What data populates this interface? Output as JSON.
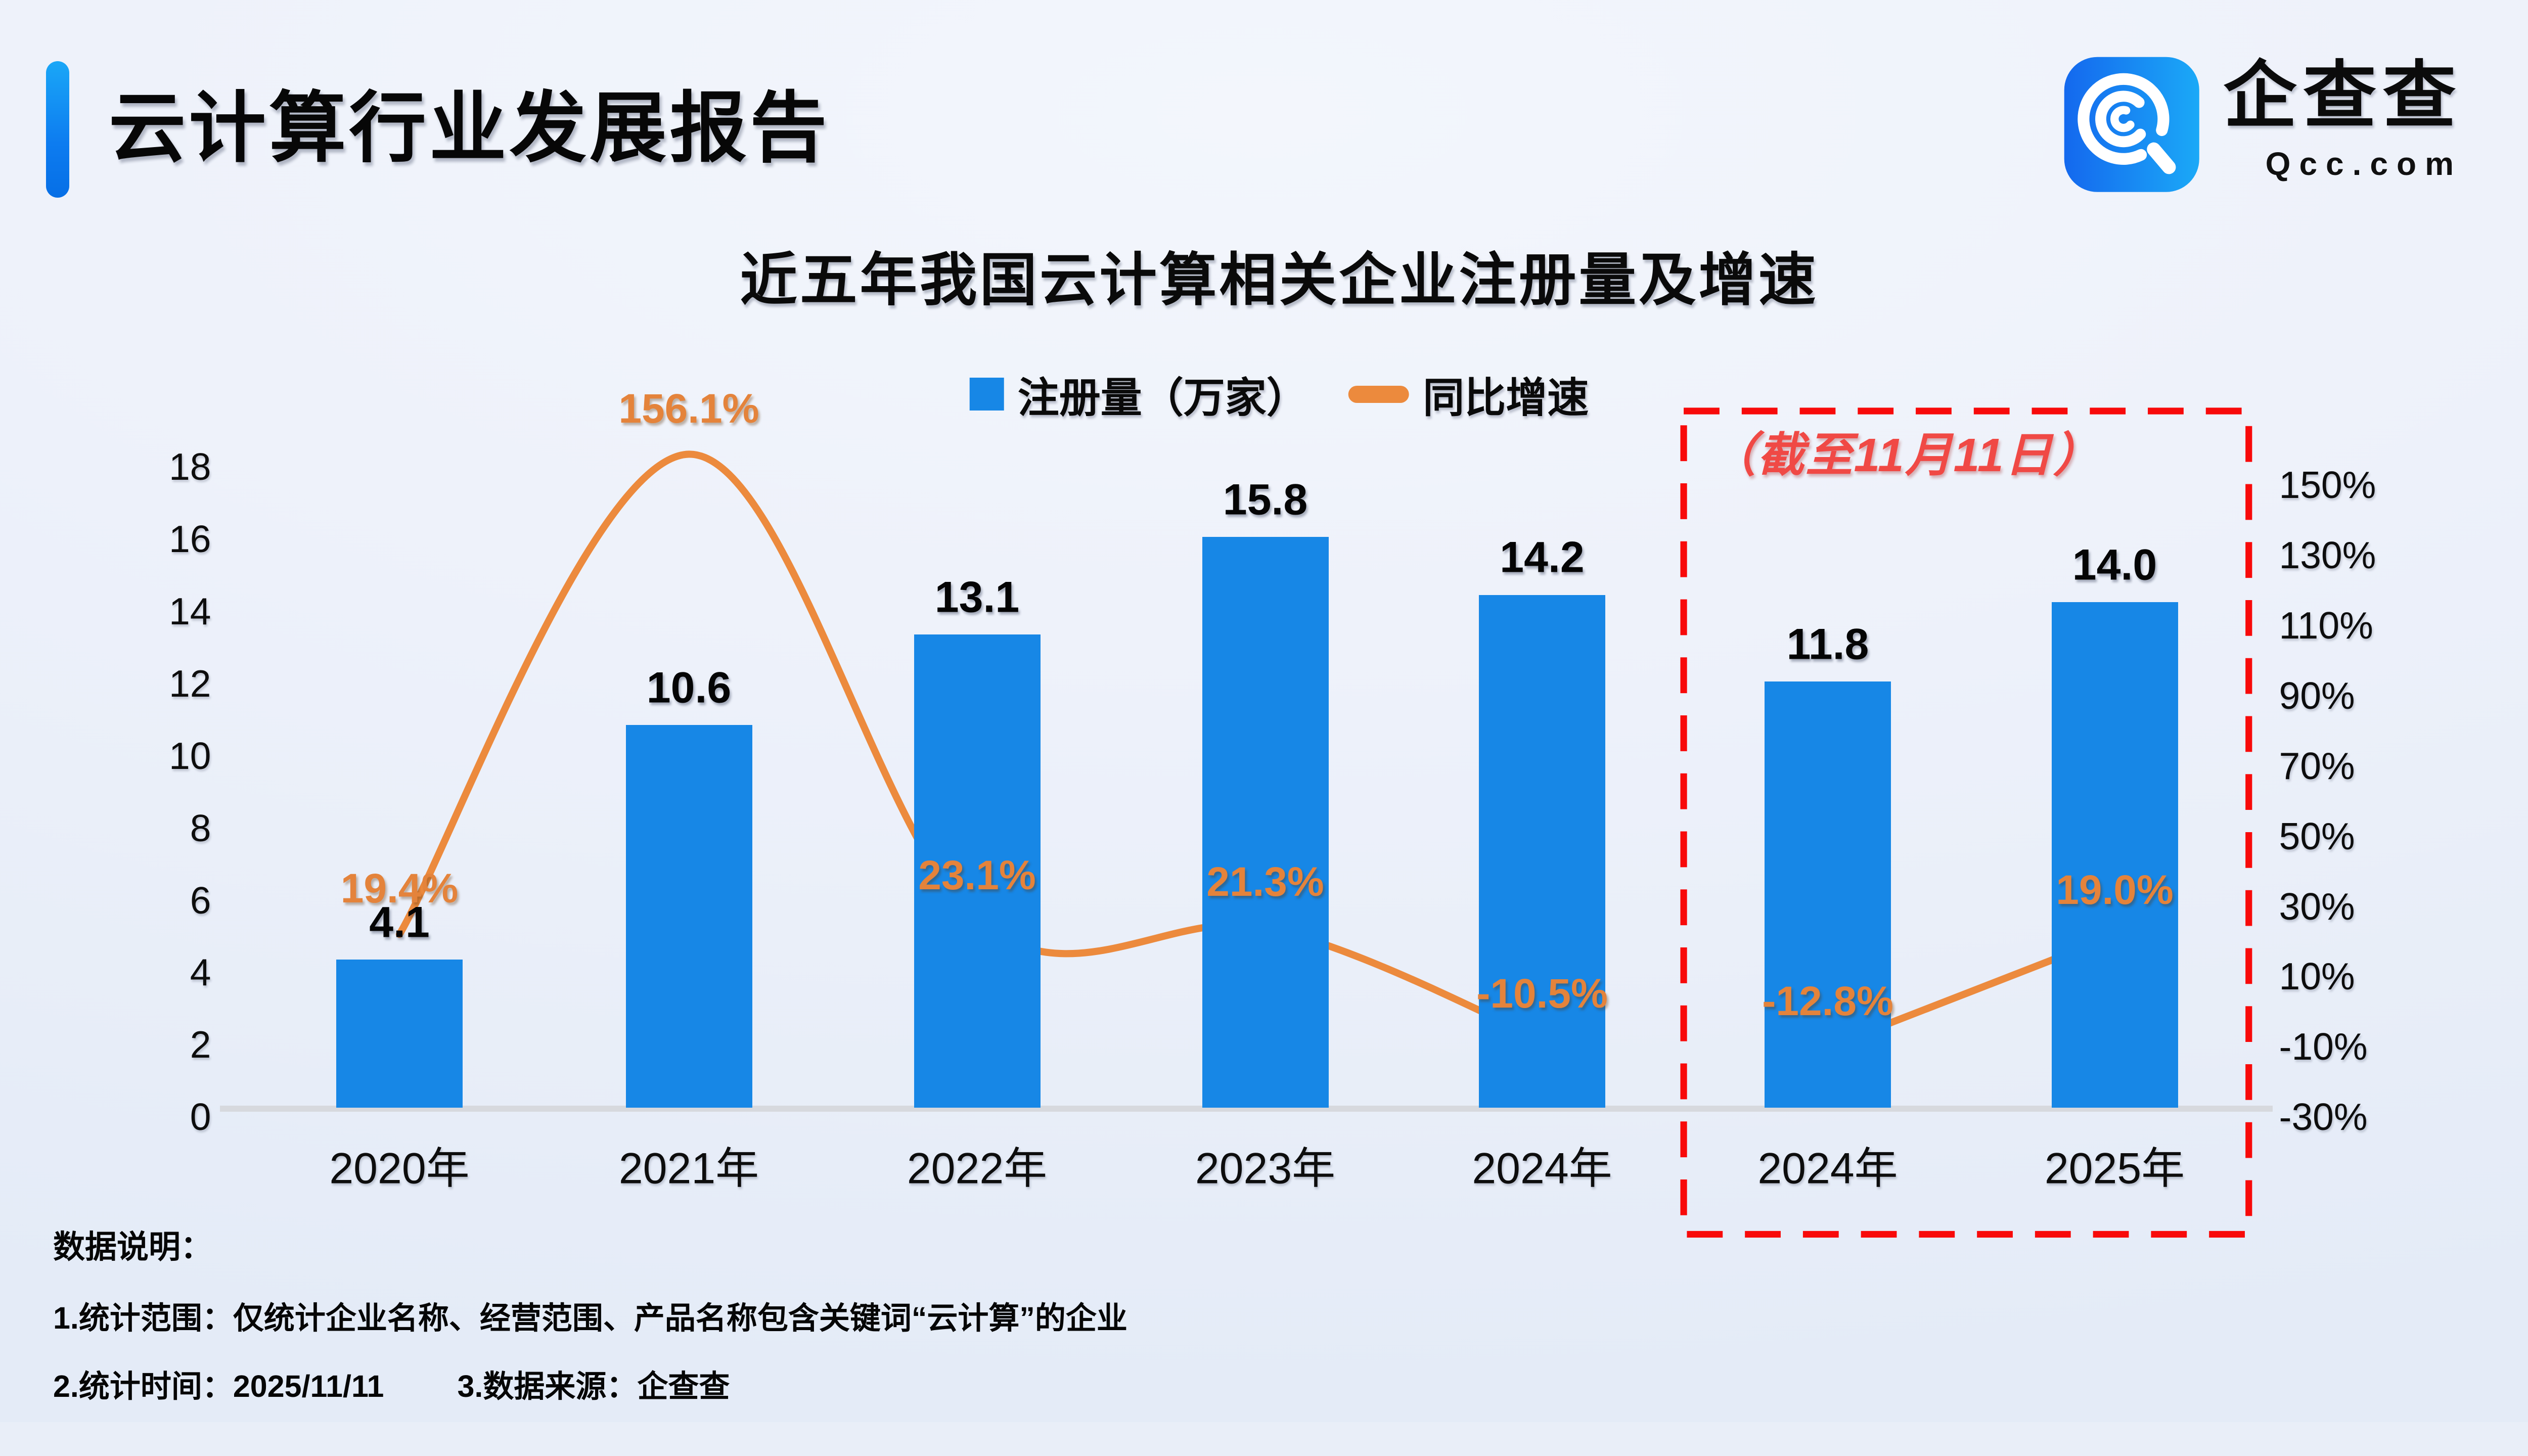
{
  "header": {
    "title": "云计算行业发展报告"
  },
  "logo": {
    "name": "企查查",
    "domain": "Qcc.com"
  },
  "chart_data": {
    "type": "bar+line",
    "title": "近五年我国云计算相关企业注册量及增速",
    "categories": [
      "2020年",
      "2021年",
      "2022年",
      "2023年",
      "2024年",
      "2024年",
      "2025年"
    ],
    "series": [
      {
        "name": "注册量（万家）",
        "type": "bar",
        "axis": "left",
        "color": "#1787E6",
        "values": [
          4.1,
          10.6,
          13.1,
          15.8,
          14.2,
          11.8,
          14.0
        ],
        "labels": [
          "4.1",
          "10.6",
          "13.1",
          "15.8",
          "14.2",
          "11.8",
          "14.0"
        ]
      },
      {
        "name": "同比增速",
        "type": "line",
        "axis": "right",
        "color": "#EC8A3D",
        "values": [
          19.4,
          156.1,
          23.1,
          21.3,
          -10.5,
          -12.8,
          19.0
        ],
        "labels": [
          "19.4%",
          "156.1%",
          "23.1%",
          "21.3%",
          "-10.5%",
          "-12.8%",
          "19.0%"
        ],
        "segments": [
          [
            0,
            4
          ],
          [
            5,
            6
          ]
        ]
      }
    ],
    "left_axis": {
      "min": 0,
      "max": 18,
      "step": 2,
      "ticks": [
        "0",
        "2",
        "4",
        "6",
        "8",
        "10",
        "12",
        "14",
        "16",
        "18"
      ]
    },
    "right_axis": {
      "min": -30,
      "max": 150,
      "step": 20,
      "ticks": [
        "150%",
        "130%",
        "110%",
        "90%",
        "70%",
        "50%",
        "30%",
        "10%",
        "-10%",
        "-30%"
      ]
    },
    "highlight_box": {
      "label": "（截至11月11日）",
      "start_category_index": 5,
      "end_category_index": 6,
      "color": "#F80A0A"
    },
    "legend_position": "top",
    "grid": false
  },
  "notes": {
    "heading": "数据说明：",
    "line1": "1.统计范围：仅统计企业名称、经营范围、产品名称包含关键词“云计算”的企业",
    "line2_left": "2.统计时间：2025/11/11",
    "line2_right": "3.数据来源：企查查"
  },
  "colors": {
    "bar": "#1787E6",
    "line": "#EC8A3D",
    "highlight": "#F80A0A",
    "annotation_text": "#F04945",
    "accent": "#0d7cf0"
  }
}
